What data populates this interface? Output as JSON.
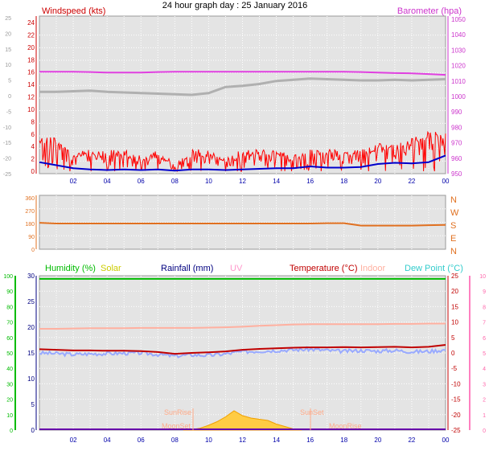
{
  "title": "24 hour graph day : 25 January 2016",
  "colors": {
    "background": "#ffffff",
    "plot_bg": "#e4e4e4",
    "wind": "#ff0000",
    "wind_avg": "#0000cc",
    "barometer": "#e040e0",
    "temperature": "#c00000",
    "humidity": "#00bb00",
    "solar": "#f0a000",
    "rainfall": "#000080",
    "uv": "#ff80c0",
    "indoor": "#ffb0a0",
    "dew_point": "#99aaff",
    "direction": "#e07020"
  },
  "x_ticks": [
    "02",
    "04",
    "06",
    "08",
    "10",
    "12",
    "14",
    "16",
    "18",
    "20",
    "22",
    "00"
  ],
  "chart_data": [
    {
      "type": "line",
      "name": "wind-panel",
      "title": "24 hour graph day : 25 January 2016",
      "left_axis_label": "Windspeed (kts)",
      "right_axis_label": "Barometer (hpa)",
      "left_ticks": [
        "24",
        "22",
        "20",
        "18",
        "16",
        "14",
        "12",
        "10",
        "8",
        "6",
        "4",
        "2",
        "0"
      ],
      "outer_left_ticks": [
        "25",
        "20",
        "15",
        "10",
        "5",
        "0",
        "-5",
        "-10",
        "-15",
        "-20",
        "-25"
      ],
      "right_ticks": [
        "1050",
        "1040",
        "1030",
        "1020",
        "1010",
        "1000",
        "990",
        "980",
        "970",
        "960",
        "950"
      ],
      "ylim": [
        0,
        25
      ],
      "x_hours": [
        0,
        1,
        2,
        3,
        4,
        5,
        6,
        7,
        8,
        9,
        10,
        11,
        12,
        13,
        14,
        15,
        16,
        17,
        18,
        19,
        20,
        21,
        22,
        23,
        24
      ],
      "series": [
        {
          "id": "gust",
          "values": [
            5,
            5,
            3,
            3,
            3,
            3,
            2,
            3,
            1,
            3,
            3,
            2,
            3,
            3,
            3,
            2,
            3,
            3,
            3,
            3,
            4,
            4,
            5,
            6,
            6
          ]
        },
        {
          "id": "avg",
          "values": [
            1.5,
            1.0,
            0.5,
            0.3,
            0.2,
            0.3,
            0.2,
            0.3,
            0.1,
            0.3,
            0.3,
            0.2,
            0.3,
            0.4,
            0.5,
            0.5,
            0.8,
            0.6,
            0.6,
            0.7,
            1.2,
            1.4,
            1.3,
            1.5,
            2.6
          ]
        },
        {
          "id": "barometer",
          "values": [
            1016,
            1016,
            1016,
            1015.8,
            1015.5,
            1015.5,
            1015.5,
            1015.8,
            1016,
            1016,
            1016,
            1016,
            1016,
            1016,
            1016,
            1016,
            1016,
            1016,
            1016,
            1015.8,
            1015.5,
            1015.2,
            1015,
            1014.5,
            1014
          ]
        },
        {
          "id": "grey",
          "values": [
            0.5,
            0.5,
            0.6,
            0.7,
            0.5,
            0.4,
            0.3,
            0.2,
            0.1,
            0,
            0.3,
            1.3,
            1.5,
            1.8,
            2.3,
            2.5,
            2.7,
            2.6,
            2.5,
            2.4,
            2.4,
            2.5,
            2.4,
            2.5,
            2.6
          ]
        }
      ]
    },
    {
      "type": "line",
      "name": "direction-panel",
      "left_ticks": [
        "360",
        "270",
        "180",
        "90",
        "0"
      ],
      "right_ticks": [
        "N",
        "W",
        "S",
        "E",
        "N"
      ],
      "ylim": [
        0,
        360
      ],
      "x_hours": [
        0,
        1,
        2,
        3,
        4,
        5,
        6,
        7,
        8,
        9,
        10,
        11,
        12,
        13,
        14,
        15,
        16,
        17,
        18,
        19,
        20,
        21,
        22,
        23,
        24
      ],
      "series": [
        {
          "id": "direction",
          "values": [
            185,
            180,
            180,
            180,
            180,
            180,
            180,
            180,
            180,
            180,
            180,
            180,
            180,
            180,
            180,
            180,
            180,
            182,
            182,
            165,
            165,
            165,
            165,
            168,
            170
          ]
        }
      ]
    },
    {
      "type": "line",
      "name": "temp-panel",
      "legend": [
        "Humidity (%)",
        "Solar",
        "Rainfall (mm)",
        "UV",
        "Temperature (°C)",
        "Indoor",
        "Dew Point (°C)"
      ],
      "left_ticks": [
        "100",
        "90",
        "80",
        "70",
        "60",
        "50",
        "40",
        "30",
        "20",
        "10",
        "0"
      ],
      "left2_ticks": [
        "30",
        "25",
        "20",
        "15",
        "10",
        "5",
        "0"
      ],
      "right_ticks": [
        "25",
        "20",
        "15",
        "10",
        "5",
        "0",
        "-5",
        "-10",
        "-15",
        "-20",
        "-25"
      ],
      "right2_ticks": [
        "10",
        "9",
        "8",
        "7",
        "6",
        "5",
        "4",
        "3",
        "2",
        "1",
        "0"
      ],
      "ylim": [
        -25,
        25
      ],
      "annotations": [
        "SunRise",
        "SunSet",
        "MoonSet",
        "MoonRise"
      ],
      "x_hours": [
        0,
        1,
        2,
        3,
        4,
        5,
        6,
        7,
        8,
        9,
        10,
        11,
        12,
        13,
        14,
        15,
        16,
        17,
        18,
        19,
        20,
        21,
        22,
        23,
        24
      ],
      "series": [
        {
          "id": "temperature",
          "values": [
            1.2,
            1.0,
            0.8,
            0.8,
            0.7,
            0.7,
            0.6,
            0.3,
            -0.3,
            0.0,
            0.2,
            0.5,
            1.0,
            1.3,
            1.5,
            1.7,
            1.8,
            1.8,
            1.9,
            1.8,
            1.9,
            2.0,
            1.8,
            2.0,
            2.6
          ]
        },
        {
          "id": "dewpoint",
          "values": [
            0.0,
            -0.2,
            -0.5,
            -0.3,
            -0.2,
            -0.1,
            0.0,
            -0.5,
            -1.0,
            -0.6,
            -0.8,
            -0.3,
            0.4,
            0.6,
            0.8,
            1.0,
            1.2,
            0.8,
            0.5,
            0.8,
            0.6,
            0.8,
            0.4,
            0.5,
            1.0
          ]
        },
        {
          "id": "indoor",
          "values": [
            7.8,
            7.8,
            7.9,
            8.0,
            8.0,
            8.0,
            8.1,
            8.1,
            8.1,
            8.1,
            8.2,
            8.3,
            8.5,
            8.8,
            9.0,
            9.2,
            9.3,
            9.3,
            9.3,
            9.3,
            9.3,
            9.4,
            9.4,
            9.5,
            9.5
          ]
        },
        {
          "id": "humidity",
          "values": [
            98,
            98,
            98,
            98,
            98,
            98,
            98,
            98,
            98,
            98,
            98,
            98,
            98,
            98,
            98,
            98,
            98,
            98,
            98,
            98,
            98,
            98,
            98,
            98,
            98
          ]
        },
        {
          "id": "solar",
          "x": [
            8.5,
            9,
            9.5,
            10,
            10.5,
            11,
            11.5,
            12,
            12.5,
            13,
            13.5,
            14,
            14.5,
            15,
            15.5
          ],
          "values": [
            0,
            0.2,
            0.8,
            2.0,
            3.5,
            5.5,
            8.0,
            6.0,
            5.0,
            4.5,
            4.0,
            2.5,
            1.5,
            0.5,
            0
          ]
        }
      ]
    }
  ]
}
